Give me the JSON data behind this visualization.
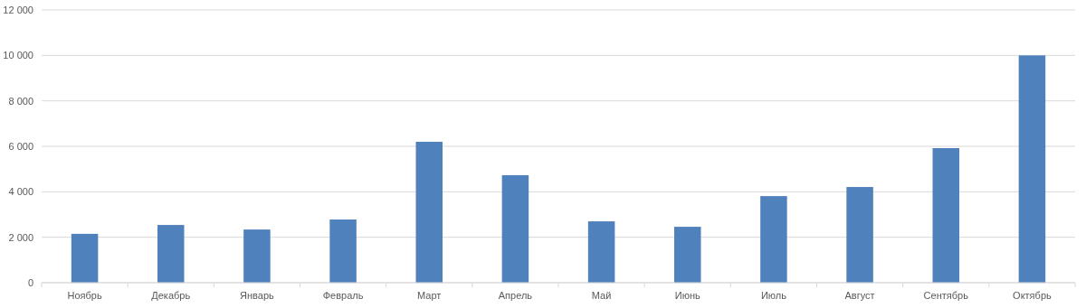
{
  "chart_data": {
    "type": "bar",
    "categories": [
      "Ноябрь",
      "Декабрь",
      "Январь",
      "Февраль",
      "Март",
      "Апрель",
      "Май",
      "Июнь",
      "Июль",
      "Август",
      "Сентябрь",
      "Октябрь"
    ],
    "values": [
      2150,
      2540,
      2340,
      2780,
      6200,
      4730,
      2700,
      2460,
      3810,
      4210,
      5920,
      10000
    ],
    "color": "#4f81bd",
    "ylim": [
      0,
      12000
    ],
    "yticks": [
      0,
      {
        "value": 2000,
        "label": "2 000"
      },
      {
        "value": 4000,
        "label": "4 000"
      },
      {
        "value": 6000,
        "label": "6 000"
      },
      {
        "value": 8000,
        "label": "8 000"
      },
      {
        "value": 10000,
        "label": "10 000"
      },
      {
        "value": 12000,
        "label": "12 000"
      }
    ],
    "grid": "y"
  }
}
